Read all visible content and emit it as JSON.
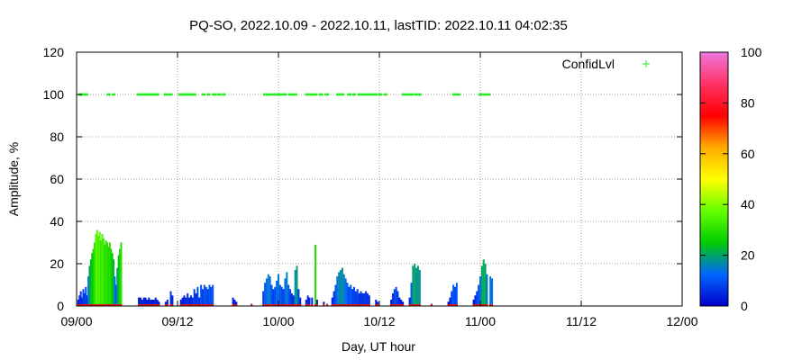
{
  "chart_data": {
    "type": "bar",
    "title": "PQ-SO, 2022.10.09 - 2022.10.11, lastTID: 2022.10.11 04:02:35",
    "xlabel": "Day, UT hour",
    "ylabel": "Amplitude, %",
    "x_unit": "hours since 09/00",
    "xlim": [
      0,
      72
    ],
    "ylim": [
      0,
      120
    ],
    "x_ticks": [
      {
        "value": 0,
        "label": "09/00"
      },
      {
        "value": 12,
        "label": "09/12"
      },
      {
        "value": 24,
        "label": "10/00"
      },
      {
        "value": 36,
        "label": "10/12"
      },
      {
        "value": 48,
        "label": "11/00"
      },
      {
        "value": 60,
        "label": "11/12"
      },
      {
        "value": 72,
        "label": "12/00"
      }
    ],
    "y_ticks": [
      0,
      20,
      40,
      60,
      80,
      100,
      120
    ],
    "grid": true,
    "legend": {
      "label": "ConfidLvl",
      "position": "top-right",
      "color": "#22ee22"
    },
    "colorbar": {
      "min": 0,
      "max": 100,
      "ticks": [
        0,
        20,
        40,
        60,
        80,
        100
      ],
      "stops": [
        "#0000cc",
        "#0066ff",
        "#00cc00",
        "#66ff00",
        "#ffff00",
        "#ffaa00",
        "#ff0000",
        "#ff3366",
        "#ee77dd"
      ]
    },
    "series": [
      {
        "name": "Amplitude",
        "points": [
          [
            0.2,
            3
          ],
          [
            0.35,
            5
          ],
          [
            0.5,
            7
          ],
          [
            0.65,
            4
          ],
          [
            0.8,
            8
          ],
          [
            0.95,
            6
          ],
          [
            1.1,
            9
          ],
          [
            1.25,
            5
          ],
          [
            1.4,
            14
          ],
          [
            1.55,
            19
          ],
          [
            1.7,
            22
          ],
          [
            1.85,
            25
          ],
          [
            2.0,
            27
          ],
          [
            2.15,
            30
          ],
          [
            2.3,
            34
          ],
          [
            2.45,
            36
          ],
          [
            2.6,
            33
          ],
          [
            2.75,
            35
          ],
          [
            2.9,
            31
          ],
          [
            3.05,
            34
          ],
          [
            3.2,
            32
          ],
          [
            3.35,
            29
          ],
          [
            3.5,
            31
          ],
          [
            3.65,
            30
          ],
          [
            3.8,
            28
          ],
          [
            3.95,
            30
          ],
          [
            4.1,
            27
          ],
          [
            4.25,
            25
          ],
          [
            4.4,
            22
          ],
          [
            4.55,
            14
          ],
          [
            4.7,
            10
          ],
          [
            4.85,
            18
          ],
          [
            5.0,
            24
          ],
          [
            5.15,
            27
          ],
          [
            5.3,
            30
          ],
          [
            7.4,
            4
          ],
          [
            7.6,
            4
          ],
          [
            7.8,
            3
          ],
          [
            8.0,
            4
          ],
          [
            8.2,
            4
          ],
          [
            8.4,
            3
          ],
          [
            8.6,
            4
          ],
          [
            8.8,
            3
          ],
          [
            9.0,
            3
          ],
          [
            9.2,
            3
          ],
          [
            9.4,
            4
          ],
          [
            9.6,
            3
          ],
          [
            9.8,
            2
          ],
          [
            10.6,
            2
          ],
          [
            10.8,
            3
          ],
          [
            11.2,
            7
          ],
          [
            11.4,
            5
          ],
          [
            12.4,
            3
          ],
          [
            12.6,
            4
          ],
          [
            12.8,
            5
          ],
          [
            13.0,
            4
          ],
          [
            13.2,
            6
          ],
          [
            13.4,
            4
          ],
          [
            13.6,
            5
          ],
          [
            13.8,
            4
          ],
          [
            14.0,
            8
          ],
          [
            14.2,
            6
          ],
          [
            14.4,
            9
          ],
          [
            14.6,
            4
          ],
          [
            14.8,
            10
          ],
          [
            15.0,
            8
          ],
          [
            15.2,
            10
          ],
          [
            15.4,
            9
          ],
          [
            15.6,
            8
          ],
          [
            15.8,
            10
          ],
          [
            16.0,
            9
          ],
          [
            16.2,
            10
          ],
          [
            18.6,
            4
          ],
          [
            18.8,
            3
          ],
          [
            19.0,
            2
          ],
          [
            20.8,
            1
          ],
          [
            22.2,
            7
          ],
          [
            22.4,
            11
          ],
          [
            22.6,
            13
          ],
          [
            22.8,
            15
          ],
          [
            23.0,
            14
          ],
          [
            23.2,
            10
          ],
          [
            23.4,
            8
          ],
          [
            23.6,
            9
          ],
          [
            23.8,
            12
          ],
          [
            24.0,
            15
          ],
          [
            24.2,
            10
          ],
          [
            24.4,
            9
          ],
          [
            24.6,
            8
          ],
          [
            24.8,
            13
          ],
          [
            25.0,
            16
          ],
          [
            25.2,
            10
          ],
          [
            25.4,
            8
          ],
          [
            25.6,
            6
          ],
          [
            25.8,
            5
          ],
          [
            26.0,
            17
          ],
          [
            26.2,
            19
          ],
          [
            26.4,
            8
          ],
          [
            26.6,
            4
          ],
          [
            27.3,
            3
          ],
          [
            27.5,
            5
          ],
          [
            27.7,
            4
          ],
          [
            28.0,
            4
          ],
          [
            28.4,
            29
          ],
          [
            28.6,
            3
          ],
          [
            29.4,
            2
          ],
          [
            29.8,
            1
          ],
          [
            30.4,
            4
          ],
          [
            30.6,
            7
          ],
          [
            30.8,
            10
          ],
          [
            31.0,
            14
          ],
          [
            31.2,
            16
          ],
          [
            31.4,
            17
          ],
          [
            31.6,
            18
          ],
          [
            31.8,
            15
          ],
          [
            32.0,
            13
          ],
          [
            32.2,
            11
          ],
          [
            32.4,
            9
          ],
          [
            32.6,
            10
          ],
          [
            32.8,
            8
          ],
          [
            33.0,
            9
          ],
          [
            33.2,
            7
          ],
          [
            33.4,
            8
          ],
          [
            33.6,
            6
          ],
          [
            33.8,
            7
          ],
          [
            34.0,
            6
          ],
          [
            34.2,
            6
          ],
          [
            34.4,
            7
          ],
          [
            34.6,
            6
          ],
          [
            34.8,
            5
          ],
          [
            35.6,
            3
          ],
          [
            35.8,
            2
          ],
          [
            37.4,
            3
          ],
          [
            37.6,
            6
          ],
          [
            37.8,
            8
          ],
          [
            38.0,
            9
          ],
          [
            38.2,
            7
          ],
          [
            38.4,
            4
          ],
          [
            38.6,
            3
          ],
          [
            38.8,
            2
          ],
          [
            39.6,
            4
          ],
          [
            39.8,
            11
          ],
          [
            40.0,
            19
          ],
          [
            40.2,
            20
          ],
          [
            40.4,
            18
          ],
          [
            40.6,
            19
          ],
          [
            40.8,
            17
          ],
          [
            42.2,
            1
          ],
          [
            44.2,
            2
          ],
          [
            44.4,
            4
          ],
          [
            44.6,
            7
          ],
          [
            44.8,
            10
          ],
          [
            45.0,
            9
          ],
          [
            45.2,
            11
          ],
          [
            47.2,
            3
          ],
          [
            47.4,
            5
          ],
          [
            47.6,
            7
          ],
          [
            47.8,
            10
          ],
          [
            48.0,
            14
          ],
          [
            48.2,
            19
          ],
          [
            48.4,
            22
          ],
          [
            48.6,
            20
          ],
          [
            48.8,
            15
          ],
          [
            49.2,
            14
          ],
          [
            49.4,
            13
          ]
        ]
      },
      {
        "name": "ConfidLvl",
        "y": 100,
        "x_ranges": [
          [
            0.3,
            0.6
          ],
          [
            0.65,
            1.0
          ],
          [
            1.05,
            1.3
          ],
          [
            3.7,
            3.9
          ],
          [
            4.3,
            4.5
          ],
          [
            7.3,
            7.6
          ],
          [
            7.7,
            8.0
          ],
          [
            8.1,
            8.4
          ],
          [
            8.5,
            8.8
          ],
          [
            8.9,
            9.3
          ],
          [
            9.4,
            9.7
          ],
          [
            10.5,
            10.8
          ],
          [
            11.0,
            11.3
          ],
          [
            12.2,
            12.6
          ],
          [
            12.7,
            13.1
          ],
          [
            13.2,
            13.6
          ],
          [
            13.7,
            14.1
          ],
          [
            15.0,
            15.2
          ],
          [
            15.6,
            15.8
          ],
          [
            16.2,
            16.5
          ],
          [
            16.8,
            17.1
          ],
          [
            17.4,
            17.6
          ],
          [
            22.3,
            22.6
          ],
          [
            22.8,
            23.2
          ],
          [
            23.4,
            23.8
          ],
          [
            24.0,
            24.3
          ],
          [
            24.5,
            24.9
          ],
          [
            25.3,
            25.6
          ],
          [
            25.8,
            26.1
          ],
          [
            27.3,
            27.6
          ],
          [
            27.8,
            28.1
          ],
          [
            28.3,
            28.5
          ],
          [
            28.9,
            29.2
          ],
          [
            29.6,
            29.9
          ],
          [
            31.0,
            31.3
          ],
          [
            31.4,
            31.7
          ],
          [
            32.3,
            32.6
          ],
          [
            32.9,
            33.1
          ],
          [
            33.5,
            33.8
          ],
          [
            34.0,
            34.3
          ],
          [
            34.5,
            34.8
          ],
          [
            34.9,
            35.2
          ],
          [
            35.4,
            35.7
          ],
          [
            36.0,
            36.2
          ],
          [
            36.6,
            36.8
          ],
          [
            38.8,
            39.0
          ],
          [
            39.2,
            39.5
          ],
          [
            39.7,
            40.0
          ],
          [
            40.3,
            40.5
          ],
          [
            40.7,
            40.9
          ],
          [
            44.8,
            45.1
          ],
          [
            45.3,
            45.5
          ],
          [
            47.9,
            48.2
          ],
          [
            48.4,
            48.6
          ],
          [
            48.8,
            49.1
          ]
        ]
      }
    ]
  }
}
